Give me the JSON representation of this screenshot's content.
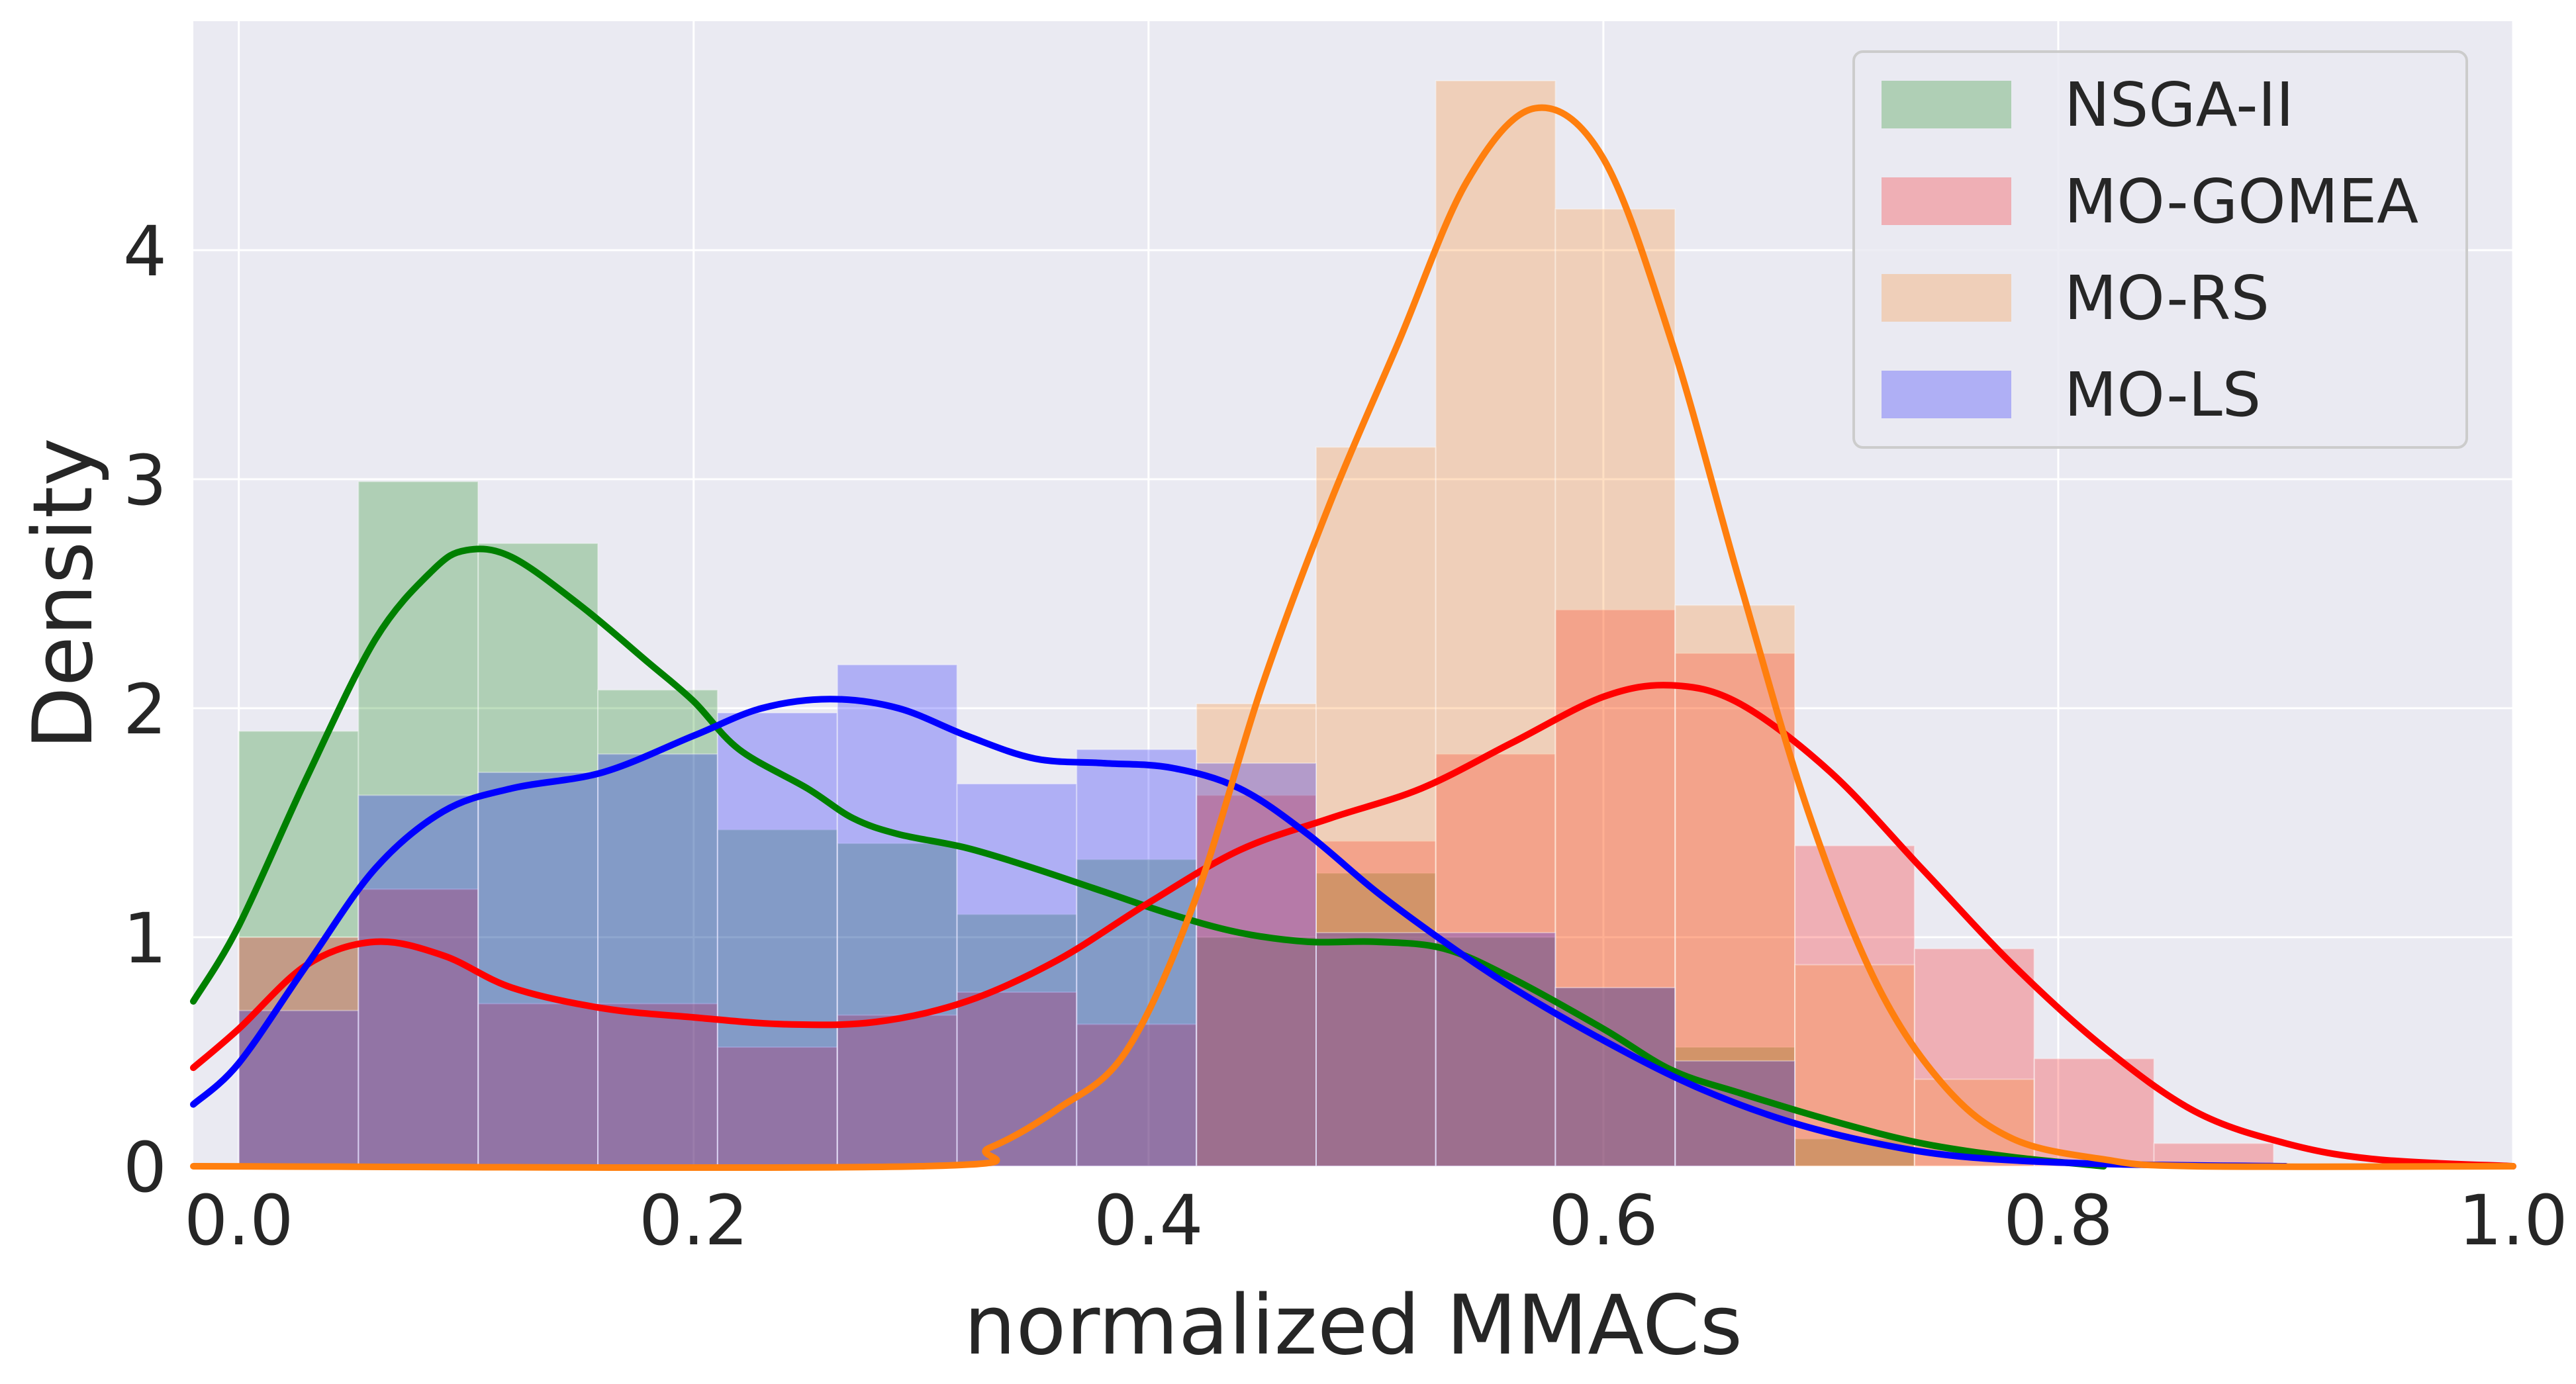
{
  "chart_data": {
    "type": "histogram_kde",
    "xlabel": "normalized MMACs",
    "ylabel": "Density",
    "xlim": [
      -0.02,
      1.0
    ],
    "ylim": [
      0,
      5.0
    ],
    "xticks": [
      0.0,
      0.2,
      0.4,
      0.6,
      0.8,
      1.0
    ],
    "xtick_labels": [
      "0.0",
      "0.2",
      "0.4",
      "0.6",
      "0.8",
      "1.0"
    ],
    "yticks": [
      0,
      1,
      2,
      3,
      4
    ],
    "ytick_labels": [
      "0",
      "1",
      "2",
      "3",
      "4"
    ],
    "grid": true,
    "legend_position": "top-right",
    "bin_width": 0.0526,
    "series": [
      {
        "name": "NSGA-II",
        "color": "#008000",
        "bins": [
          {
            "x0": 0.0,
            "density": 1.9
          },
          {
            "x0": 0.0526,
            "density": 2.99
          },
          {
            "x0": 0.1053,
            "density": 2.72
          },
          {
            "x0": 0.1579,
            "density": 2.08
          },
          {
            "x0": 0.2105,
            "density": 1.47
          },
          {
            "x0": 0.2632,
            "density": 1.41
          },
          {
            "x0": 0.3158,
            "density": 1.1
          },
          {
            "x0": 0.3684,
            "density": 1.34
          },
          {
            "x0": 0.4211,
            "density": 1.0
          },
          {
            "x0": 0.4737,
            "density": 1.28
          },
          {
            "x0": 0.5263,
            "density": 1.0
          },
          {
            "x0": 0.5789,
            "density": 0.78
          },
          {
            "x0": 0.6316,
            "density": 0.52
          },
          {
            "x0": 0.6842,
            "density": 0.12
          }
        ],
        "kde": [
          [
            -0.02,
            0.72
          ],
          [
            0.0,
            1.05
          ],
          [
            0.03,
            1.7
          ],
          [
            0.06,
            2.3
          ],
          [
            0.085,
            2.6
          ],
          [
            0.1,
            2.69
          ],
          [
            0.12,
            2.66
          ],
          [
            0.15,
            2.45
          ],
          [
            0.18,
            2.2
          ],
          [
            0.2,
            2.03
          ],
          [
            0.22,
            1.82
          ],
          [
            0.25,
            1.65
          ],
          [
            0.27,
            1.52
          ],
          [
            0.29,
            1.45
          ],
          [
            0.32,
            1.39
          ],
          [
            0.35,
            1.3
          ],
          [
            0.38,
            1.2
          ],
          [
            0.41,
            1.1
          ],
          [
            0.44,
            1.02
          ],
          [
            0.47,
            0.98
          ],
          [
            0.5,
            0.98
          ],
          [
            0.53,
            0.95
          ],
          [
            0.56,
            0.82
          ],
          [
            0.6,
            0.6
          ],
          [
            0.63,
            0.42
          ],
          [
            0.66,
            0.32
          ],
          [
            0.7,
            0.2
          ],
          [
            0.74,
            0.1
          ],
          [
            0.78,
            0.04
          ],
          [
            0.82,
            0.0
          ]
        ]
      },
      {
        "name": "MO-GOMEA",
        "color": "#ff0000",
        "bins": [
          {
            "x0": 0.0,
            "density": 1.0
          },
          {
            "x0": 0.0526,
            "density": 1.21
          },
          {
            "x0": 0.1053,
            "density": 0.71
          },
          {
            "x0": 0.1579,
            "density": 0.71
          },
          {
            "x0": 0.2105,
            "density": 0.52
          },
          {
            "x0": 0.2632,
            "density": 0.66
          },
          {
            "x0": 0.3158,
            "density": 0.76
          },
          {
            "x0": 0.3684,
            "density": 0.62
          },
          {
            "x0": 0.4211,
            "density": 1.62
          },
          {
            "x0": 0.4737,
            "density": 1.42
          },
          {
            "x0": 0.5263,
            "density": 1.8
          },
          {
            "x0": 0.5789,
            "density": 2.43
          },
          {
            "x0": 0.6316,
            "density": 2.24
          },
          {
            "x0": 0.6842,
            "density": 1.4
          },
          {
            "x0": 0.7368,
            "density": 0.95
          },
          {
            "x0": 0.7895,
            "density": 0.47
          },
          {
            "x0": 0.8421,
            "density": 0.1
          }
        ],
        "kde": [
          [
            -0.02,
            0.43
          ],
          [
            0.0,
            0.6
          ],
          [
            0.03,
            0.88
          ],
          [
            0.06,
            0.98
          ],
          [
            0.09,
            0.92
          ],
          [
            0.12,
            0.78
          ],
          [
            0.16,
            0.69
          ],
          [
            0.2,
            0.65
          ],
          [
            0.24,
            0.62
          ],
          [
            0.28,
            0.63
          ],
          [
            0.32,
            0.72
          ],
          [
            0.36,
            0.9
          ],
          [
            0.4,
            1.15
          ],
          [
            0.44,
            1.38
          ],
          [
            0.48,
            1.52
          ],
          [
            0.52,
            1.65
          ],
          [
            0.56,
            1.85
          ],
          [
            0.6,
            2.05
          ],
          [
            0.63,
            2.1
          ],
          [
            0.66,
            2.02
          ],
          [
            0.7,
            1.72
          ],
          [
            0.74,
            1.3
          ],
          [
            0.78,
            0.88
          ],
          [
            0.82,
            0.52
          ],
          [
            0.86,
            0.24
          ],
          [
            0.9,
            0.1
          ],
          [
            0.94,
            0.03
          ],
          [
            1.0,
            0.0
          ]
        ]
      },
      {
        "name": "MO-RS",
        "color": "#ff7f0e",
        "bins": [
          {
            "x0": 0.4211,
            "density": 2.02
          },
          {
            "x0": 0.4737,
            "density": 3.14
          },
          {
            "x0": 0.5263,
            "density": 4.74
          },
          {
            "x0": 0.5789,
            "density": 4.18
          },
          {
            "x0": 0.6316,
            "density": 2.45
          },
          {
            "x0": 0.6842,
            "density": 0.88
          },
          {
            "x0": 0.7368,
            "density": 0.38
          }
        ],
        "kde": [
          [
            -0.02,
            0.0
          ],
          [
            0.3,
            0.0
          ],
          [
            0.33,
            0.08
          ],
          [
            0.36,
            0.25
          ],
          [
            0.39,
            0.5
          ],
          [
            0.42,
            1.15
          ],
          [
            0.45,
            2.1
          ],
          [
            0.48,
            2.9
          ],
          [
            0.51,
            3.6
          ],
          [
            0.54,
            4.3
          ],
          [
            0.57,
            4.62
          ],
          [
            0.6,
            4.4
          ],
          [
            0.63,
            3.6
          ],
          [
            0.66,
            2.55
          ],
          [
            0.69,
            1.55
          ],
          [
            0.72,
            0.8
          ],
          [
            0.75,
            0.35
          ],
          [
            0.78,
            0.12
          ],
          [
            0.82,
            0.03
          ],
          [
            0.86,
            0.0
          ],
          [
            1.0,
            0.0
          ]
        ]
      },
      {
        "name": "MO-LS",
        "color": "#0000ff",
        "bins": [
          {
            "x0": 0.0,
            "density": 0.68
          },
          {
            "x0": 0.0526,
            "density": 1.62
          },
          {
            "x0": 0.1053,
            "density": 1.72
          },
          {
            "x0": 0.1579,
            "density": 1.8
          },
          {
            "x0": 0.2105,
            "density": 1.98
          },
          {
            "x0": 0.2632,
            "density": 2.19
          },
          {
            "x0": 0.3158,
            "density": 1.67
          },
          {
            "x0": 0.3684,
            "density": 1.82
          },
          {
            "x0": 0.4211,
            "density": 1.76
          },
          {
            "x0": 0.4737,
            "density": 1.02
          },
          {
            "x0": 0.5263,
            "density": 1.02
          },
          {
            "x0": 0.5789,
            "density": 0.78
          },
          {
            "x0": 0.6316,
            "density": 0.46
          }
        ],
        "kde": [
          [
            -0.02,
            0.27
          ],
          [
            0.0,
            0.45
          ],
          [
            0.03,
            0.88
          ],
          [
            0.06,
            1.3
          ],
          [
            0.09,
            1.55
          ],
          [
            0.12,
            1.65
          ],
          [
            0.16,
            1.72
          ],
          [
            0.2,
            1.88
          ],
          [
            0.23,
            2.0
          ],
          [
            0.26,
            2.04
          ],
          [
            0.29,
            2.0
          ],
          [
            0.32,
            1.88
          ],
          [
            0.35,
            1.78
          ],
          [
            0.38,
            1.76
          ],
          [
            0.41,
            1.74
          ],
          [
            0.44,
            1.65
          ],
          [
            0.47,
            1.45
          ],
          [
            0.5,
            1.2
          ],
          [
            0.53,
            0.98
          ],
          [
            0.56,
            0.78
          ],
          [
            0.6,
            0.55
          ],
          [
            0.64,
            0.35
          ],
          [
            0.68,
            0.2
          ],
          [
            0.72,
            0.1
          ],
          [
            0.76,
            0.04
          ],
          [
            0.82,
            0.01
          ],
          [
            0.9,
            0.0
          ]
        ]
      }
    ]
  }
}
